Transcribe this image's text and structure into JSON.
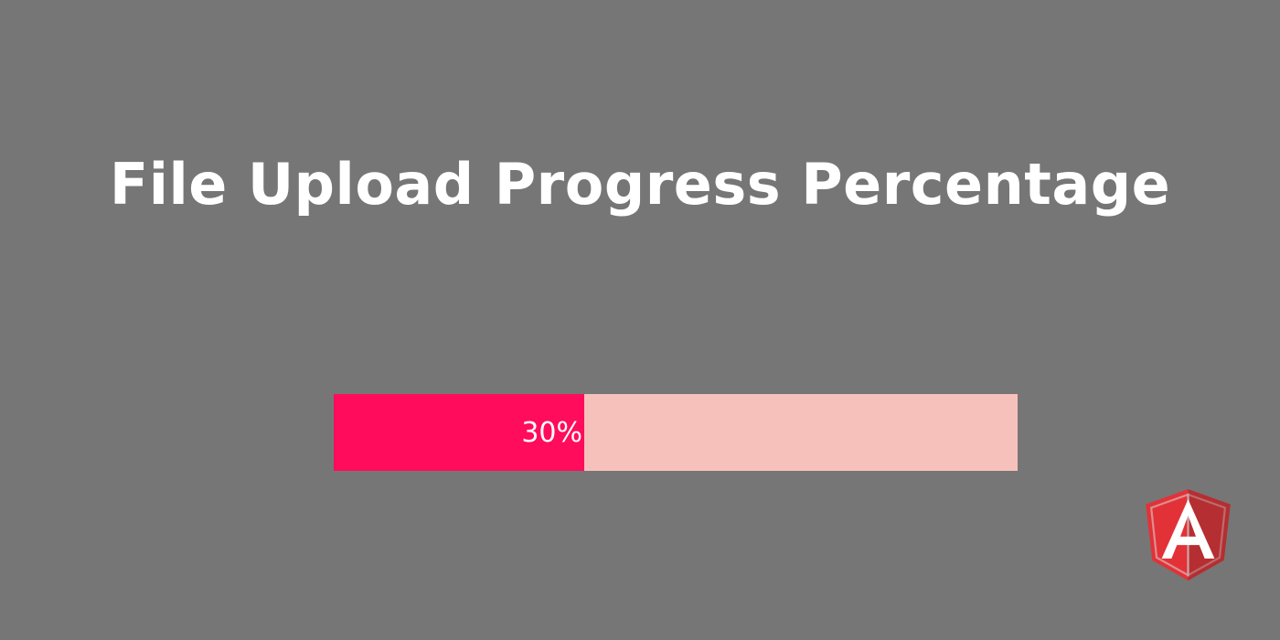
{
  "header": {
    "title": "File Upload Progress Percentage"
  },
  "upload": {
    "progress_percent": 30,
    "progress_label": "30%"
  },
  "colors": {
    "background": "#767676",
    "progress_fill": "#ff0c5c",
    "progress_track": "#f7c1bb",
    "text": "#ffffff",
    "logo_left": "#e23237",
    "logo_right": "#b52e31"
  },
  "brand": {
    "logo_icon": "angular-logo-icon",
    "logo_letter": "A"
  }
}
